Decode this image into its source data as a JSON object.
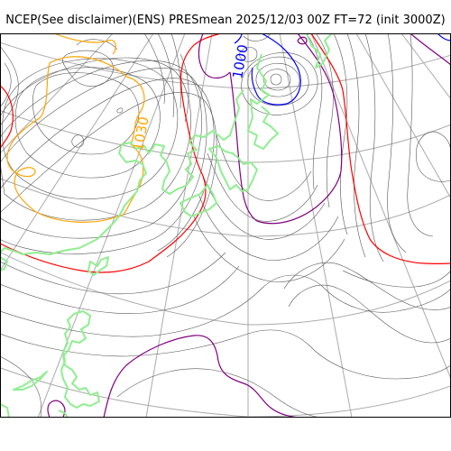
{
  "header": {
    "title": "NCEP(See disclaimer)(ENS) PRESmean 2025/12/03 00Z FT=72 (init 3000Z)"
  },
  "map": {
    "colors": {
      "background": "#ffffff",
      "frame": "#000000",
      "graticule": "#aaaaaa",
      "isobar_thin": "#555555",
      "isobar_orange": "#ffa500",
      "isobar_red": "#ff0000",
      "isobar_purple": "#800080",
      "isobar_blue": "#0000ff",
      "coastline": "#90ee90"
    },
    "contour_labels": [
      {
        "text": "1000",
        "color": "#0000ff"
      },
      {
        "text": "1030",
        "color": "#ffa500"
      }
    ]
  }
}
